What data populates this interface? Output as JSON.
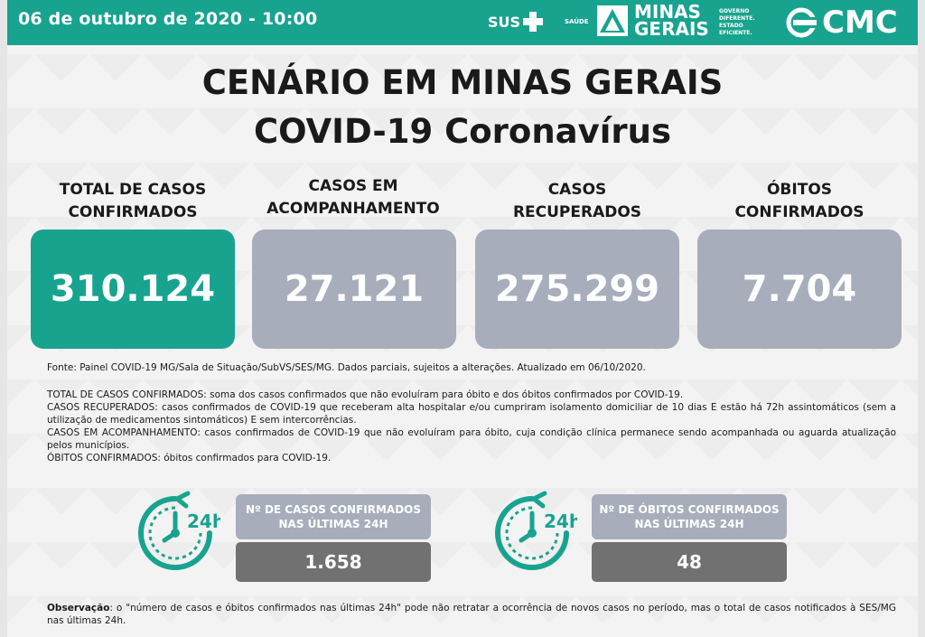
{
  "header": {
    "date": "06 de outubro de 2020 - 10:00",
    "sus_logo": "SUS",
    "saude_label": "SAÚDE",
    "mg_logo_line1": "MINAS",
    "mg_logo_line2": "GERAIS",
    "gov_line1": "GOVERNO",
    "gov_line2": "DIFERENTE.",
    "gov_line3": "ESTADO",
    "gov_line4": "EFICIENTE.",
    "cmc_logo": "CMC"
  },
  "title_line1": "CENÁRIO EM MINAS GERAIS",
  "title_line2": "COVID-19 Coronavírus",
  "stats": [
    {
      "label_line1": "TOTAL DE CASOS",
      "label_line2": "CONFIRMADOS",
      "value": "310.124"
    },
    {
      "label_line1": "CASOS EM",
      "label_line2": "ACOMPANHAMENTO",
      "value": "27.121"
    },
    {
      "label_line1": "CASOS",
      "label_line2": "RECUPERADOS",
      "value": "275.299"
    },
    {
      "label_line1": "ÓBITOS",
      "label_line2": "CONFIRMADOS",
      "value": "7.704"
    }
  ],
  "source_note": "Fonte: Painel COVID-19 MG/Sala de Situação/SubVS/SES/MG. Dados parciais, sujeitos a alterações. Atualizado em 06/10/2020.",
  "definitions": [
    "TOTAL DE  CASOS CONFIRMADOS: soma dos casos confirmados que não evoluíram para óbito e dos óbitos confirmados por COVID-19.",
    "CASOS RECUPERADOS: casos confirmados de COVID-19 que receberam alta hospitalar e/ou cumpriram isolamento domiciliar de 10 dias E estão há 72h assintomáticos (sem a utilização de medicamentos sintomáticos) E sem intercorrências.",
    "CASOS EM ACOMPANHAMENTO: casos confirmados de COVID-19 que não evoluíram para óbito, cuja condição clínica permanece sendo acompanhada ou aguarda atualização pelos municípios.",
    "ÓBITOS CONFIRMADOS: óbitos confirmados para COVID-19."
  ],
  "last24": [
    {
      "icon": "clock-24h-icon",
      "label_line1": "Nº DE CASOS CONFIRMADOS",
      "label_line2": "NAS ÚLTIMAS 24H",
      "value": "1.658"
    },
    {
      "icon": "clock-24h-icon",
      "label_line1": "Nº DE ÓBITOS CONFIRMADOS",
      "label_line2": "NAS ÚLTIMAS 24H",
      "value": "48"
    }
  ],
  "clock_badge": "24h",
  "observation_label": "Observação",
  "observation_text": ": o \"número de casos e óbitos confirmados nas últimas 24h\" pode não retratar a ocorrência de novos casos no período, mas o total de casos notificados à SES/MG nas últimas 24h.",
  "colors": {
    "teal": "#18a38f",
    "grey_card": "#a7adbb",
    "dark_grey": "#717171"
  }
}
